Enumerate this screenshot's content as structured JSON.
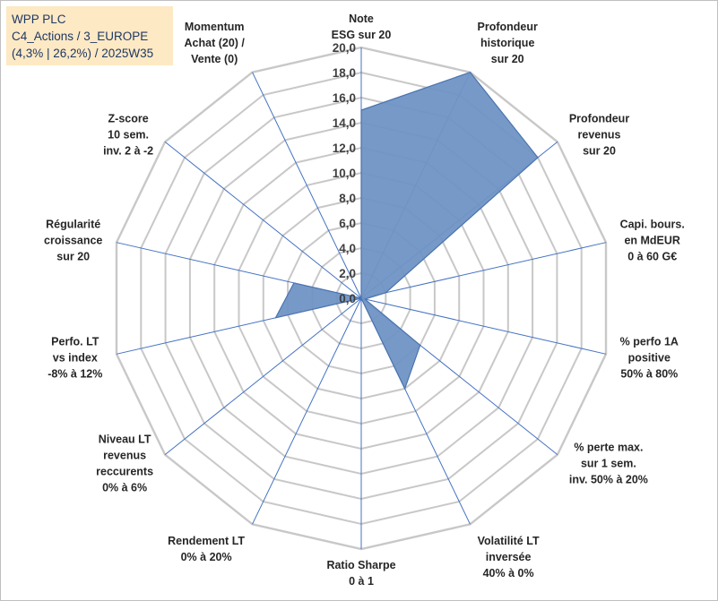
{
  "header": {
    "company": "WPP PLC",
    "category": "C4_Actions / 3_EUROPE",
    "details": "(4,3% | 26,2%) / 2025W35"
  },
  "chart_data": {
    "type": "radar",
    "rmin": 0,
    "rmax": 20,
    "ticks": [
      "0,0",
      "2,0",
      "4,0",
      "6,0",
      "8,0",
      "10,0",
      "12,0",
      "14,0",
      "16,0",
      "18,0",
      "20,0"
    ],
    "axes": [
      {
        "label": [
          "Note",
          "ESG sur 20"
        ],
        "value": 15.0
      },
      {
        "label": [
          "Profondeur",
          "historique",
          "sur 20"
        ],
        "value": 20.0
      },
      {
        "label": [
          "Profondeur",
          "revenus",
          "sur 20"
        ],
        "value": 18.0
      },
      {
        "label": [
          "Capi. bours.",
          "en MdEUR",
          "0 à 60 G€"
        ],
        "value": 2.0
      },
      {
        "label": [
          "% perfo 1A",
          "positive",
          "50% à 80%"
        ],
        "value": 0.3
      },
      {
        "label": [
          "% perte max.",
          "sur 1 sem.",
          "inv. 50% à 20%"
        ],
        "value": 6.0
      },
      {
        "label": [
          "Volatilité LT",
          "inversée",
          "40% à 0%"
        ],
        "value": 8.0
      },
      {
        "label": [
          "Ratio Sharpe",
          "0 à 1"
        ],
        "value": 0.0
      },
      {
        "label": [
          "Rendement LT",
          "0% à 20%"
        ],
        "value": 0.0
      },
      {
        "label": [
          "Niveau LT",
          "revenus",
          "reccurents",
          "0% à 6%"
        ],
        "value": 0.0
      },
      {
        "label": [
          "Perfo. LT",
          "vs index",
          "-8% à 12%"
        ],
        "value": 7.0
      },
      {
        "label": [
          "Régularité",
          "croissance",
          "sur 20"
        ],
        "value": 5.5
      },
      {
        "label": [
          "Z-score",
          "10 sem.",
          "inv. 2 à -2"
        ],
        "value": 0.0
      },
      {
        "label": [
          "Momentum",
          "Achat (20) /",
          "Vente (0)"
        ],
        "value": 0.0
      }
    ],
    "colors": {
      "fill": "#7094c4",
      "stroke": "#4a74b0",
      "grid": "#c8c8c8",
      "spoke": "#4472c4"
    }
  }
}
